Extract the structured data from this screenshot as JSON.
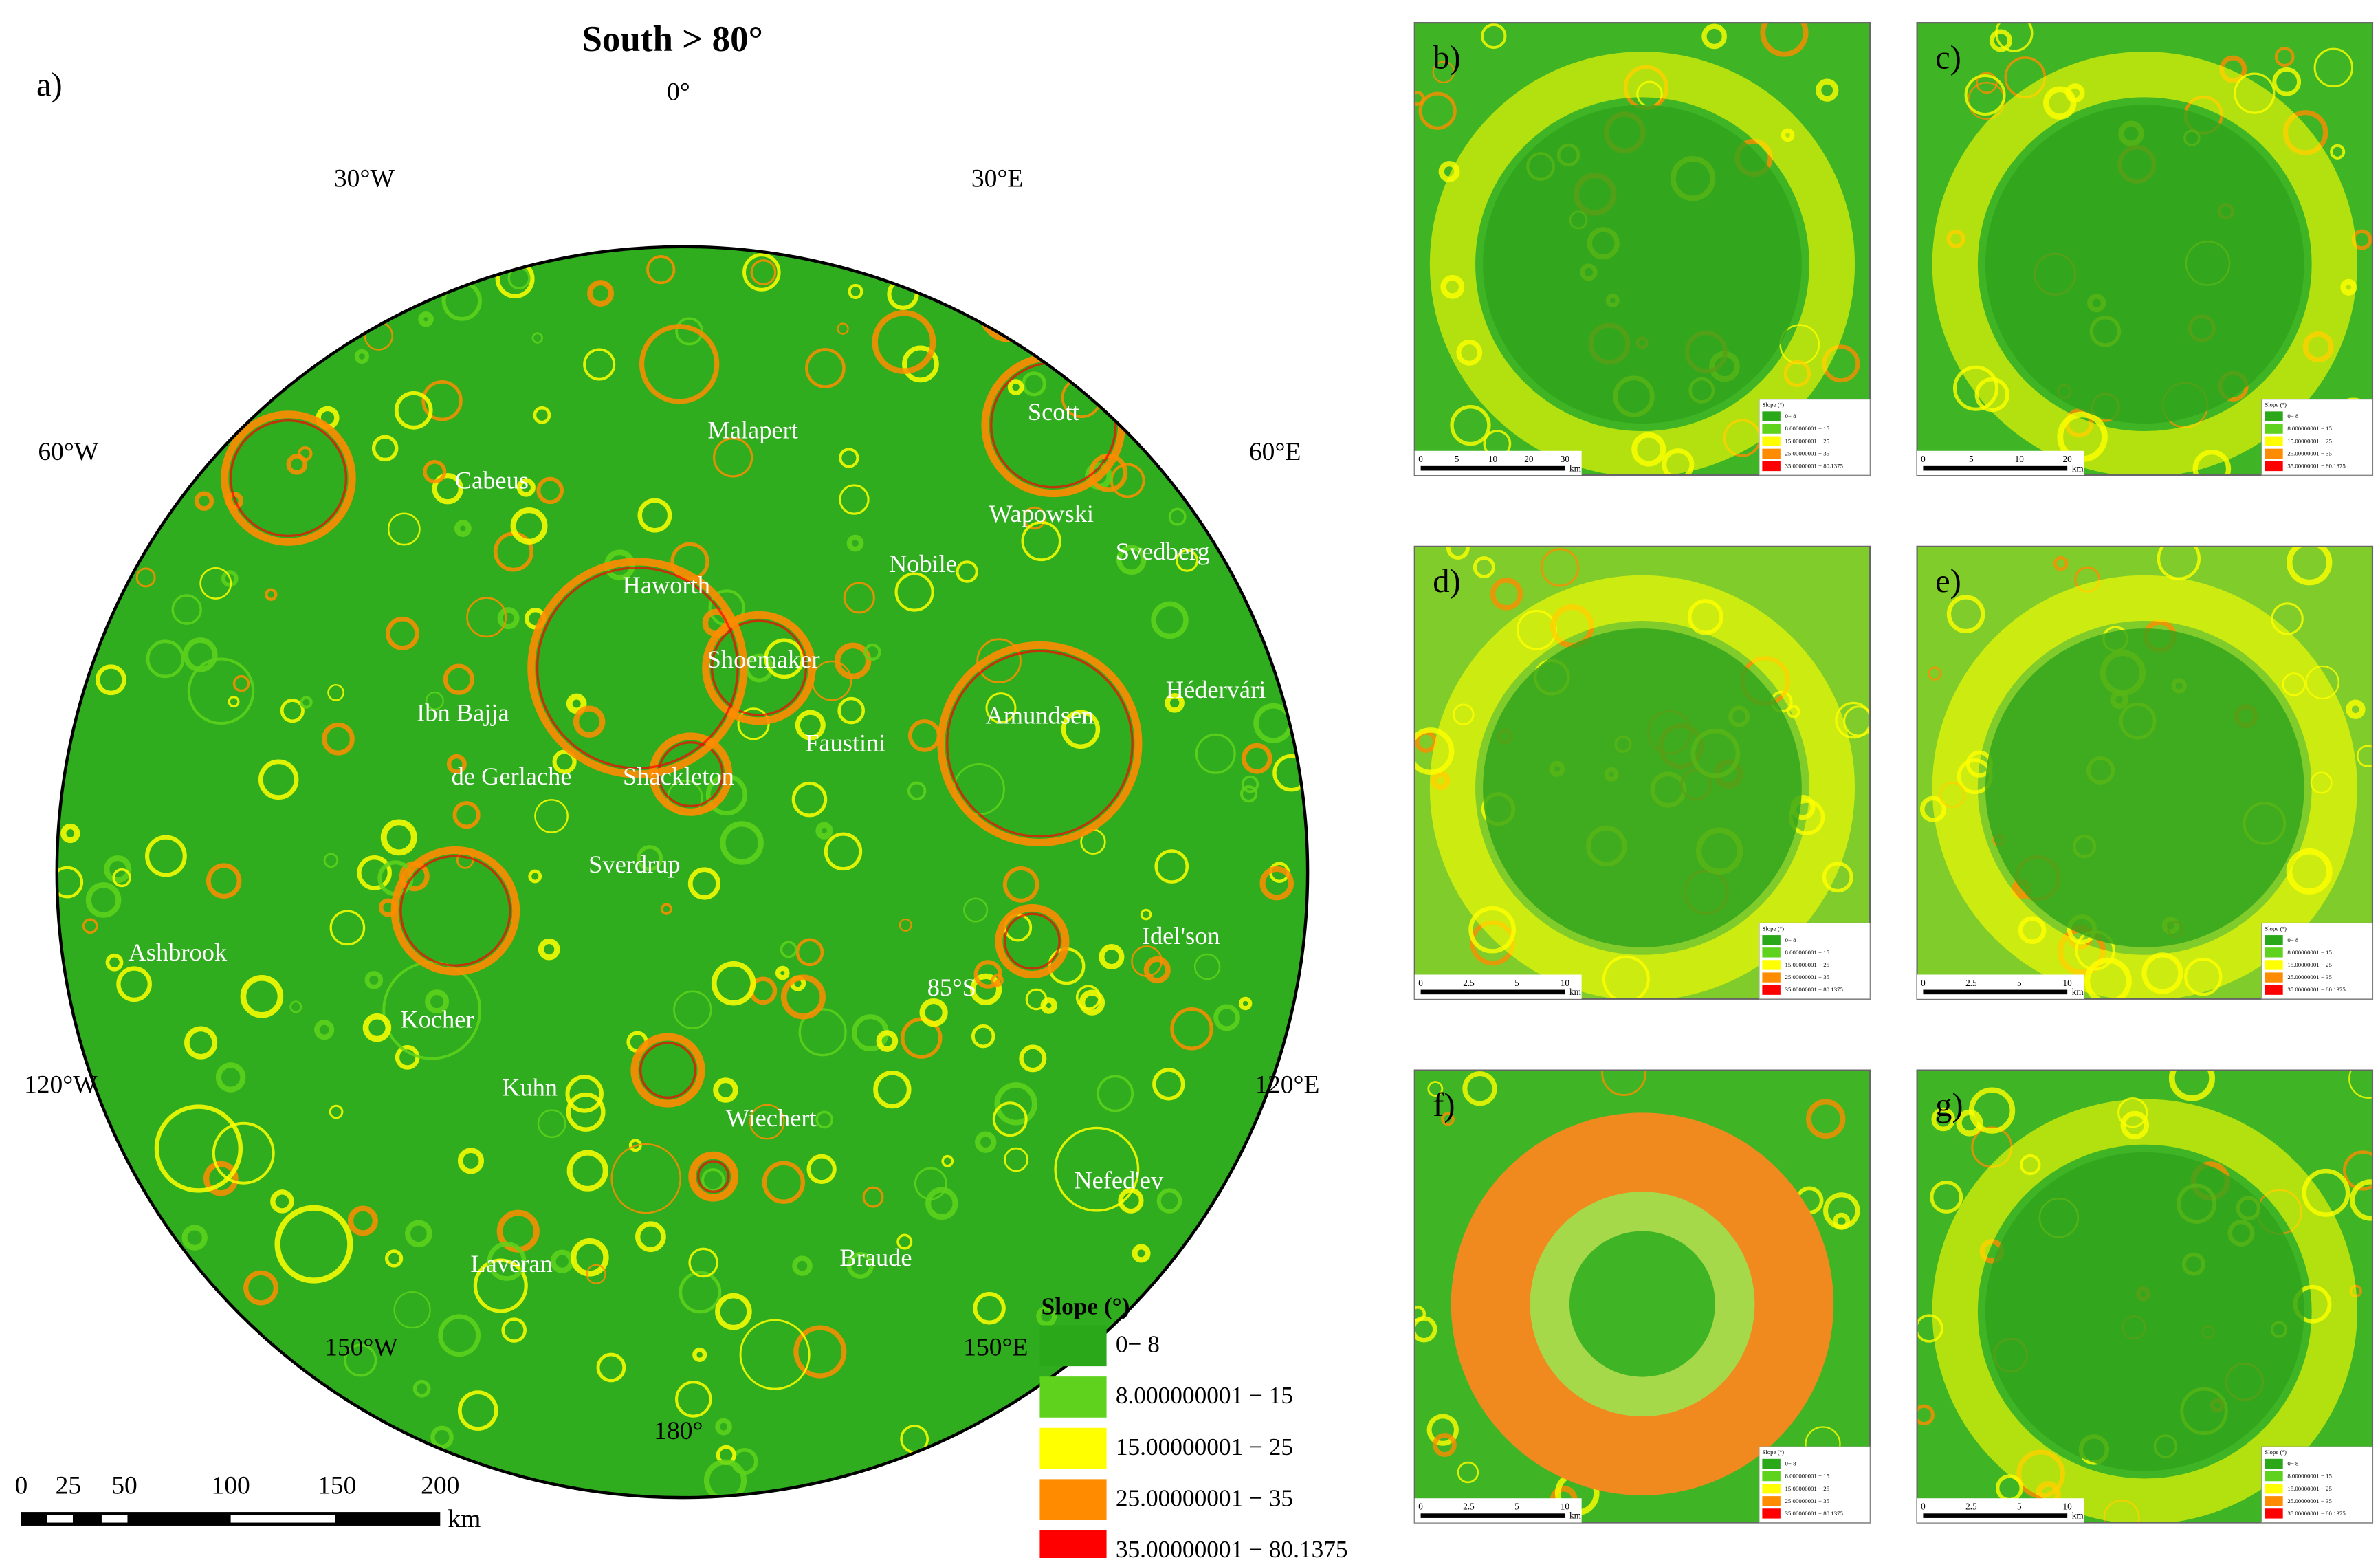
{
  "title": "South > 80°",
  "main_panel": {
    "label": "a)",
    "longitude_labels": [
      "0°",
      "30°W",
      "30°E",
      "60°W",
      "60°E",
      "120°W",
      "120°E",
      "150°W",
      "150°E",
      "180°"
    ],
    "latitude_label": "85°S",
    "craters": [
      "Malapert",
      "Cabeus",
      "Scott",
      "Wapowski",
      "Svedberg",
      "Nobile",
      "Haworth",
      "Shoemaker",
      "Hédervári",
      "Ibn Bajja",
      "Amundsen",
      "Faustini",
      "de Gerlache",
      "Shackleton",
      "Sverdrup",
      "Ashbrook",
      "Idel'son",
      "Kocher",
      "Kuhn",
      "Wiechert",
      "Nefed'ev",
      "Laveran",
      "Braude"
    ]
  },
  "legend": {
    "title": "Slope (°)",
    "entries": [
      {
        "label": "0− 8",
        "color": "#2aa81a"
      },
      {
        "label": "8.000000001 − 15",
        "color": "#5ed21c"
      },
      {
        "label": "15.00000001 − 25",
        "color": "#ffff00"
      },
      {
        "label": "25.00000001 − 35",
        "color": "#ff8c00"
      },
      {
        "label": "35.00000001 − 80.1375",
        "color": "#ff0000"
      }
    ]
  },
  "scale_bar": {
    "ticks": [
      "0",
      "25",
      "50",
      "100",
      "150",
      "200"
    ],
    "unit": "km"
  },
  "inset_panels": [
    {
      "label": "b)",
      "scale_ticks": [
        "0",
        "5",
        "10",
        "20",
        "30"
      ],
      "scale_unit": "km"
    },
    {
      "label": "c)",
      "scale_ticks": [
        "0",
        "5",
        "10",
        "20"
      ],
      "scale_unit": "km"
    },
    {
      "label": "d)",
      "scale_ticks": [
        "0",
        "2.5",
        "5",
        "10"
      ],
      "scale_unit": "km"
    },
    {
      "label": "e)",
      "scale_ticks": [
        "0",
        "2.5",
        "5",
        "10"
      ],
      "scale_unit": "km"
    },
    {
      "label": "f)",
      "scale_ticks": [
        "0",
        "2.5",
        "5",
        "10"
      ],
      "scale_unit": "km"
    },
    {
      "label": "g)",
      "scale_ticks": [
        "0",
        "2.5",
        "5",
        "10"
      ],
      "scale_unit": "km"
    }
  ]
}
